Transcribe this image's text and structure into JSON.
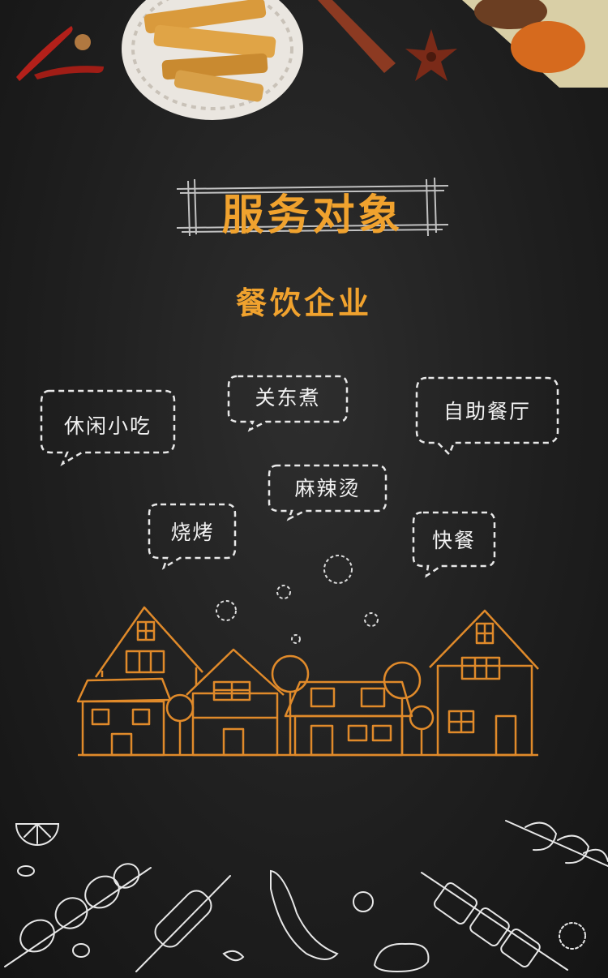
{
  "title": "服务对象",
  "subtitle": "餐饮企业",
  "categories": [
    {
      "label": "休闲小吃"
    },
    {
      "label": "关东煮"
    },
    {
      "label": "自助餐厅"
    },
    {
      "label": "麻辣烫"
    },
    {
      "label": "烧烤"
    },
    {
      "label": "快餐"
    }
  ],
  "colors": {
    "accent": "#f0a22e",
    "chalk": "#e8e8e8",
    "background": "#222222"
  }
}
